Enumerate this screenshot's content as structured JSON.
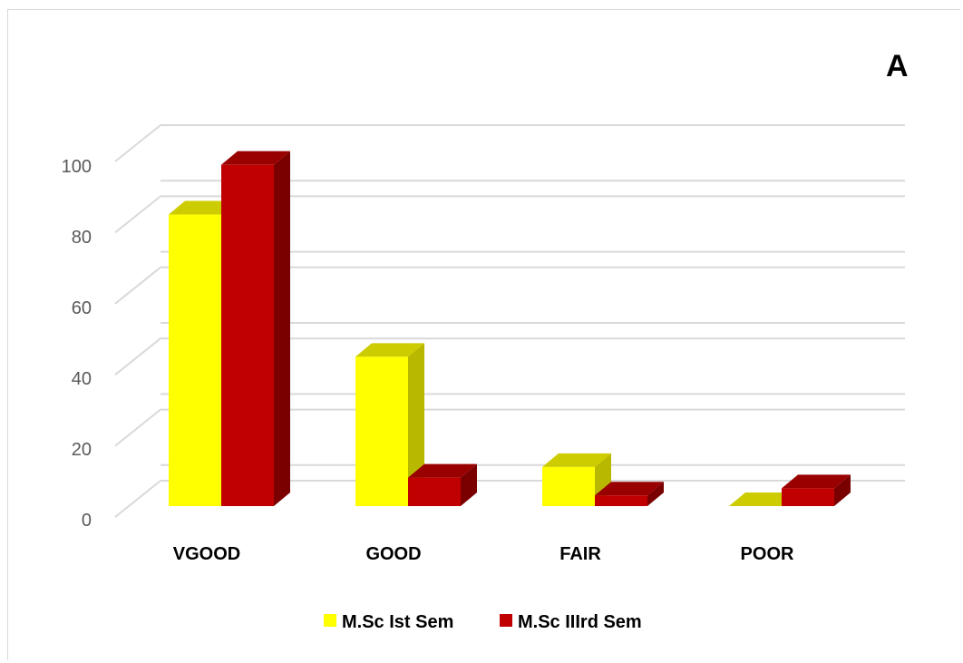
{
  "chart_data": {
    "type": "bar",
    "style": "3d-clustered-column",
    "panel_label": "A",
    "categories": [
      "VGOOD",
      "GOOD",
      "FAIR",
      "POOR"
    ],
    "series": [
      {
        "name": "M.Sc Ist Sem",
        "values": [
          82,
          42,
          11,
          0
        ],
        "color": "#ffff00",
        "top_color": "#cccc00",
        "side_color": "#b8b800"
      },
      {
        "name": "M.Sc IIIrd Sem",
        "values": [
          96,
          8,
          3,
          5
        ],
        "color": "#c00000",
        "top_color": "#990000",
        "side_color": "#7a0000"
      }
    ],
    "ylim": [
      0,
      100
    ],
    "yticks": [
      0,
      20,
      40,
      60,
      80,
      100
    ],
    "grid": true,
    "legend_position": "bottom",
    "xlabel": "",
    "ylabel": ""
  }
}
